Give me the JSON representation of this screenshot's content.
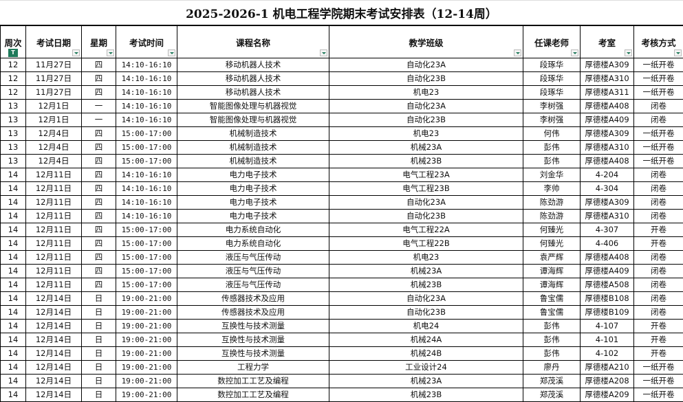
{
  "title": "2025-2026-1 机电工程学院期末考试安排表（12-14周）",
  "columns": [
    "周次",
    "考试日期",
    "星期",
    "考试时间",
    "课程名称",
    "教学班级",
    "任课老师",
    "考室",
    "考核方式"
  ],
  "filter_icon_color": "#1f7a5a",
  "rows": [
    [
      "12",
      "11月27日",
      "四",
      "14:10-16:10",
      "移动机器人技术",
      "自动化23A",
      "段琢华",
      "厚德楼A309",
      "一纸开卷"
    ],
    [
      "12",
      "11月27日",
      "四",
      "14:10-16:10",
      "移动机器人技术",
      "自动化23B",
      "段琢华",
      "厚德楼A310",
      "一纸开卷"
    ],
    [
      "12",
      "11月27日",
      "四",
      "14:10-16:10",
      "移动机器人技术",
      "机电23",
      "段琢华",
      "厚德楼A311",
      "一纸开卷"
    ],
    [
      "13",
      "12月1日",
      "一",
      "14:10-16:10",
      "智能图像处理与机器视觉",
      "自动化23A",
      "李树强",
      "厚德楼A408",
      "闭卷"
    ],
    [
      "13",
      "12月1日",
      "一",
      "14:10-16:10",
      "智能图像处理与机器视觉",
      "自动化23B",
      "李树强",
      "厚德楼A409",
      "闭卷"
    ],
    [
      "13",
      "12月4日",
      "四",
      "15:00-17:00",
      "机械制造技术",
      "机电23",
      "何伟",
      "厚德楼A309",
      "一纸开卷"
    ],
    [
      "13",
      "12月4日",
      "四",
      "15:00-17:00",
      "机械制造技术",
      "机械23A",
      "彭伟",
      "厚德楼A310",
      "一纸开卷"
    ],
    [
      "13",
      "12月4日",
      "四",
      "15:00-17:00",
      "机械制造技术",
      "机械23B",
      "彭伟",
      "厚德楼A408",
      "一纸开卷"
    ],
    [
      "14",
      "12月11日",
      "四",
      "14:10-16:10",
      "电力电子技术",
      "电气工程23A",
      "刘金华",
      "4-204",
      "闭卷"
    ],
    [
      "14",
      "12月11日",
      "四",
      "14:10-16:10",
      "电力电子技术",
      "电气工程23B",
      "李帅",
      "4-304",
      "闭卷"
    ],
    [
      "14",
      "12月11日",
      "四",
      "14:10-16:10",
      "电力电子技术",
      "自动化23A",
      "陈劲游",
      "厚德楼A309",
      "闭卷"
    ],
    [
      "14",
      "12月11日",
      "四",
      "14:10-16:10",
      "电力电子技术",
      "自动化23B",
      "陈劲游",
      "厚德楼A310",
      "闭卷"
    ],
    [
      "14",
      "12月11日",
      "四",
      "15:00-17:00",
      "电力系统自动化",
      "电气工程22A",
      "何臻光",
      "4-307",
      "开卷"
    ],
    [
      "14",
      "12月11日",
      "四",
      "15:00-17:00",
      "电力系统自动化",
      "电气工程22B",
      "何臻光",
      "4-406",
      "开卷"
    ],
    [
      "14",
      "12月11日",
      "四",
      "15:00-17:00",
      "液压与气压传动",
      "机电23",
      "袁严辉",
      "厚德楼A408",
      "闭卷"
    ],
    [
      "14",
      "12月11日",
      "四",
      "15:00-17:00",
      "液压与气压传动",
      "机械23A",
      "谭海辉",
      "厚德楼A409",
      "闭卷"
    ],
    [
      "14",
      "12月11日",
      "四",
      "15:00-17:00",
      "液压与气压传动",
      "机械23B",
      "谭海辉",
      "厚德楼A508",
      "闭卷"
    ],
    [
      "14",
      "12月14日",
      "日",
      "19:00-21:00",
      "传感器技术及应用",
      "自动化23A",
      "鲁宝儒",
      "厚德楼B108",
      "闭卷"
    ],
    [
      "14",
      "12月14日",
      "日",
      "19:00-21:00",
      "传感器技术及应用",
      "自动化23B",
      "鲁宝儒",
      "厚德楼B109",
      "闭卷"
    ],
    [
      "14",
      "12月14日",
      "日",
      "19:00-21:00",
      "互换性与技术测量",
      "机电24",
      "彭伟",
      "4-107",
      "开卷"
    ],
    [
      "14",
      "12月14日",
      "日",
      "19:00-21:00",
      "互换性与技术测量",
      "机械24A",
      "彭伟",
      "4-101",
      "开卷"
    ],
    [
      "14",
      "12月14日",
      "日",
      "19:00-21:00",
      "互换性与技术测量",
      "机械24B",
      "彭伟",
      "4-102",
      "开卷"
    ],
    [
      "14",
      "12月14日",
      "日",
      "19:00-21:00",
      "工程力学",
      "工业设计24",
      "廖丹",
      "厚德楼A210",
      "一纸开卷"
    ],
    [
      "14",
      "12月14日",
      "日",
      "19:00-21:00",
      "数控加工工艺及编程",
      "机械23A",
      "郑茂溪",
      "厚德楼A208",
      "一纸开卷"
    ],
    [
      "14",
      "12月14日",
      "日",
      "19:00-21:00",
      "数控加工工艺及编程",
      "机械23B",
      "郑茂溪",
      "厚德楼A209",
      "一纸开卷"
    ]
  ]
}
